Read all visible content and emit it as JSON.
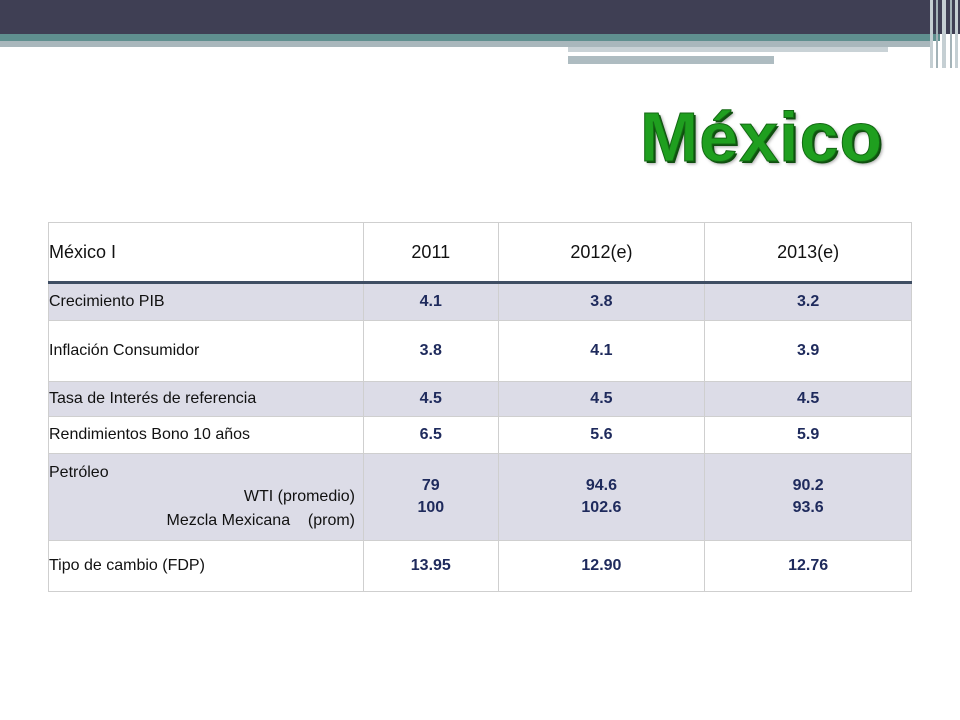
{
  "title": "México",
  "table": {
    "headers": [
      "México I",
      "2011",
      "2012(e)",
      "2013(e)"
    ],
    "rows": [
      {
        "label": "Crecimiento PIB",
        "values": [
          "4.1",
          "3.8",
          "3.2"
        ]
      },
      {
        "label": "Inflación Consumidor",
        "values": [
          "3.8",
          "4.1",
          "3.9"
        ]
      },
      {
        "label": "Tasa de Interés de referencia",
        "values": [
          "4.5",
          "4.5",
          "4.5"
        ]
      },
      {
        "label": "Rendimientos Bono 10 años",
        "values": [
          "6.5",
          "5.6",
          "5.9"
        ]
      },
      {
        "label": "Petróleo",
        "sublabels": [
          "WTI (promedio)",
          "Mezcla Mexicana    (prom)"
        ],
        "values": [
          [
            "79",
            "100"
          ],
          [
            "94.6",
            "102.6"
          ],
          [
            "90.2",
            "93.6"
          ]
        ]
      },
      {
        "label": "Tipo de cambio (FDP)",
        "values": [
          "13.95",
          "12.90",
          "12.76"
        ]
      }
    ]
  },
  "colors": {
    "title": "#1f9f1f",
    "header_rule": "#3f4e63",
    "shade": "#dcdce7",
    "values": "#1e2a5c"
  }
}
